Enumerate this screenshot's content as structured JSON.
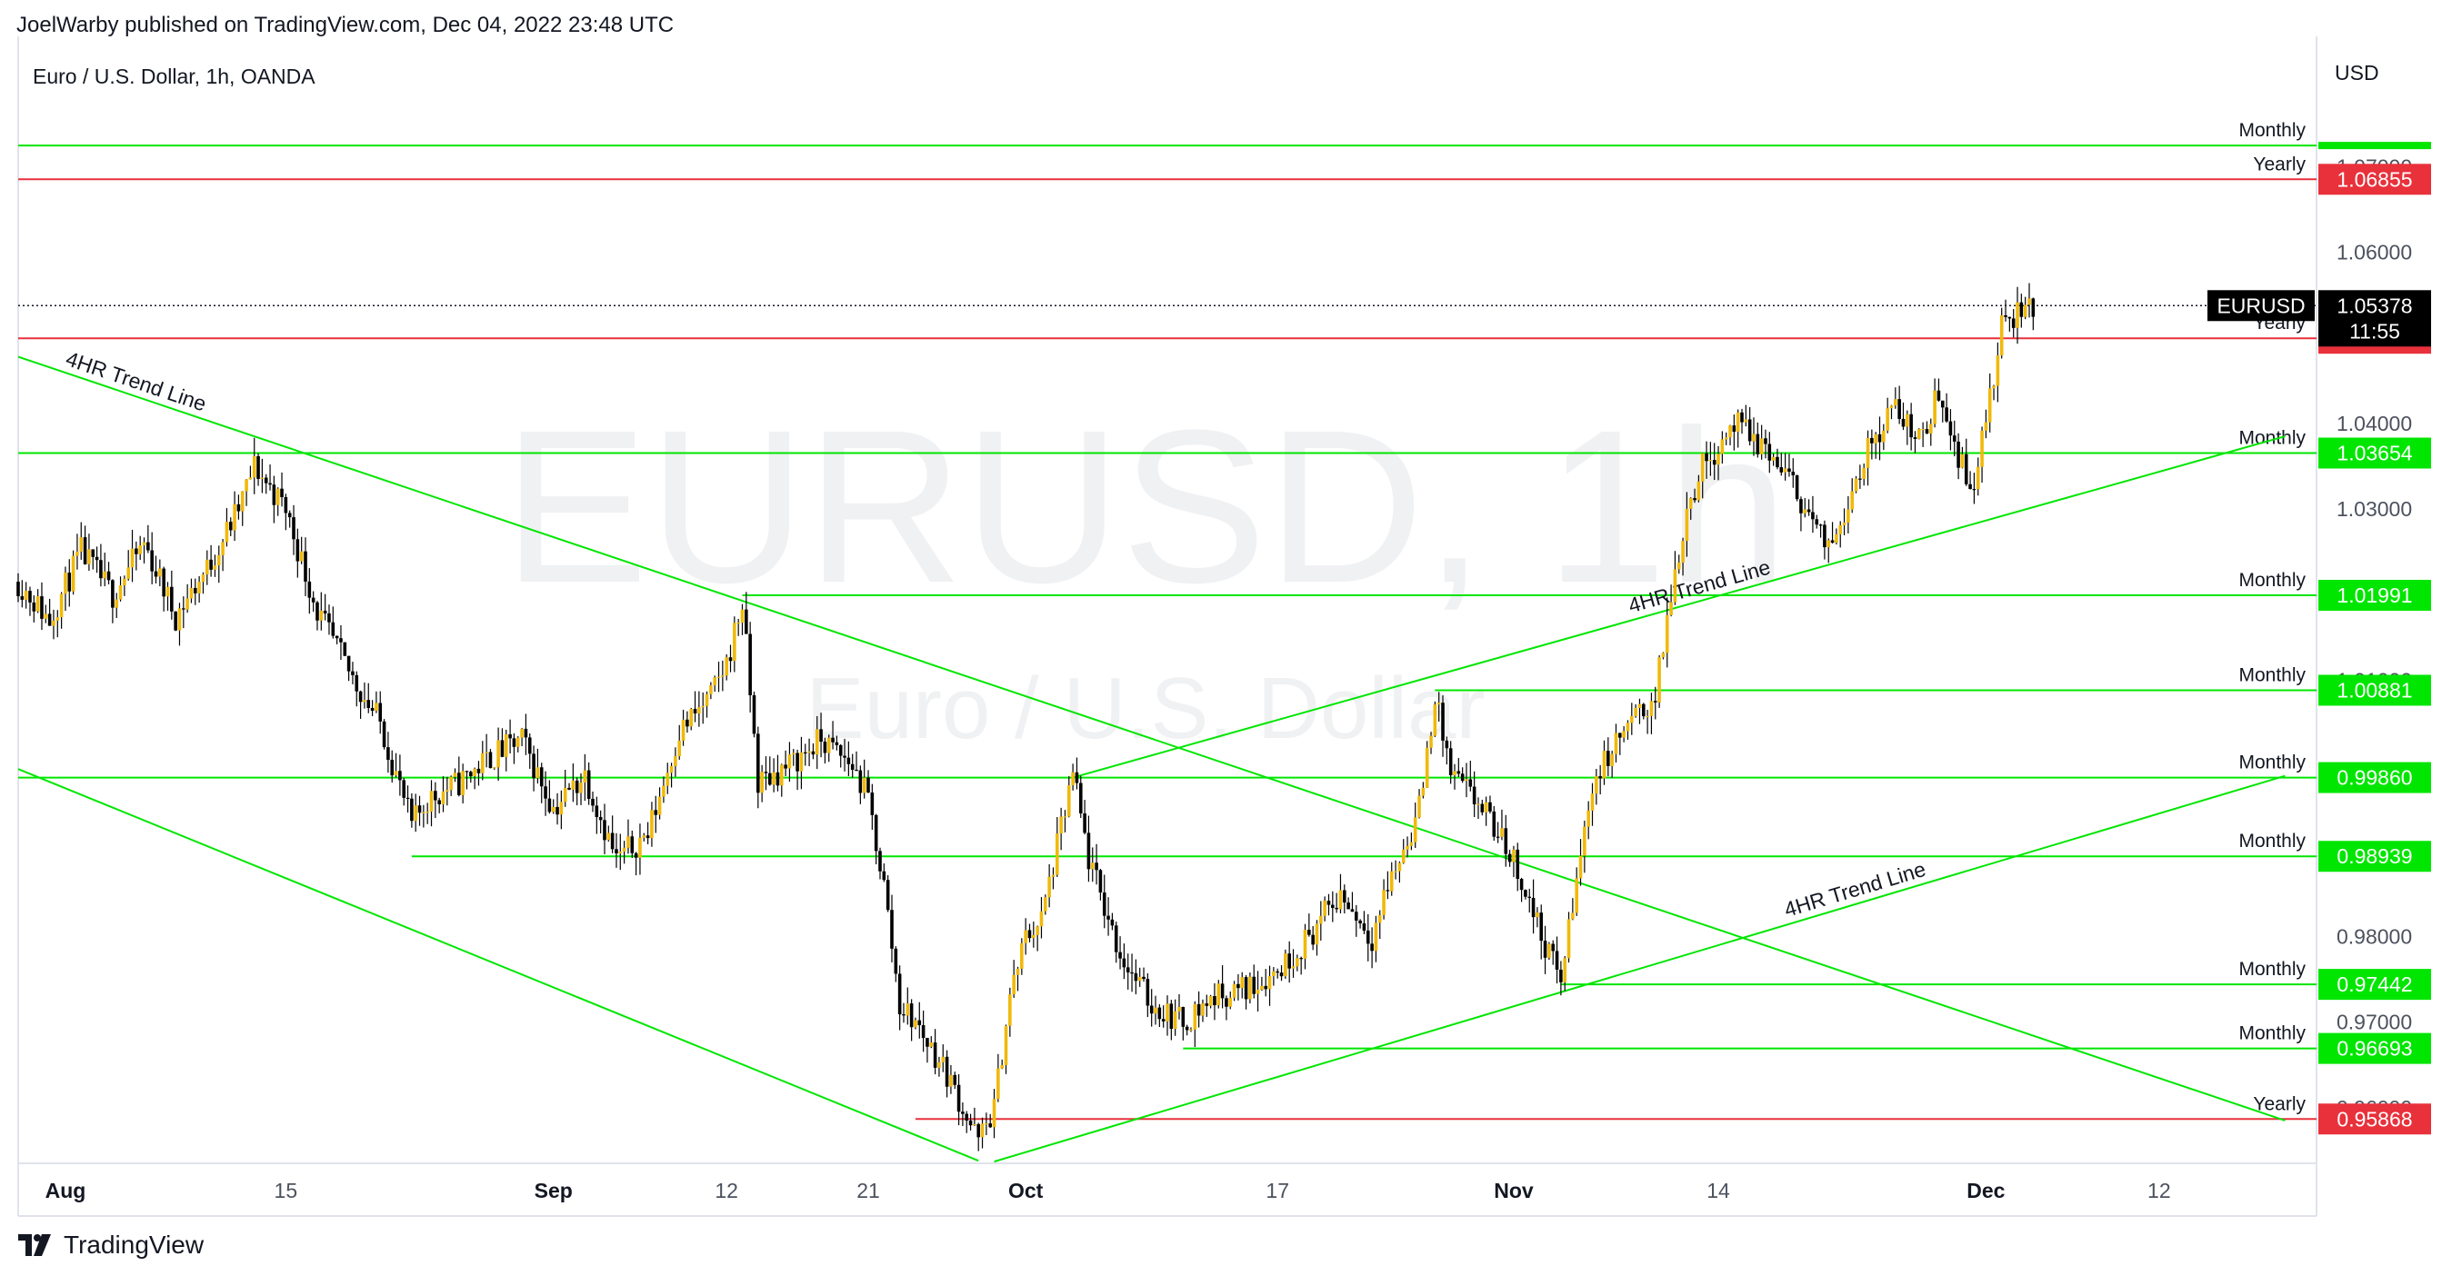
{
  "header": "JoelWarby published on TradingView.com, Dec 04, 2022 23:48 UTC",
  "footer": {
    "brand": "TradingView"
  },
  "colors": {
    "green": "#00e600",
    "red": "#e8313b",
    "price_badge": "#000000",
    "candle_up": "#f0b90b",
    "candle_down": "#000000",
    "axis_text": "#4c525e"
  },
  "chart_data": {
    "type": "candlestick",
    "symbol_title": "Euro / U.S. Dollar, 1h, OANDA",
    "watermark": {
      "main": "EURUSD, 1h",
      "sub": "Euro / U.S. Dollar"
    },
    "currency": "USD",
    "ylim": [
      0.9535,
      1.0825
    ],
    "y_ticks": [
      0.97,
      0.98,
      1.03,
      1.04,
      1.06
    ],
    "y_ticks_partial": [
      0.96,
      0.99,
      1.01,
      1.07
    ],
    "x_range": [
      "2022-07-29",
      "2022-12-22"
    ],
    "x_ticks": [
      {
        "label": "Aug",
        "date": "2022-08-01",
        "bold": true
      },
      {
        "label": "15",
        "date": "2022-08-15",
        "bold": false
      },
      {
        "label": "Sep",
        "date": "2022-09-01",
        "bold": true
      },
      {
        "label": "12",
        "date": "2022-09-12",
        "bold": false
      },
      {
        "label": "21",
        "date": "2022-09-21",
        "bold": false
      },
      {
        "label": "Oct",
        "date": "2022-10-01",
        "bold": true
      },
      {
        "label": "17",
        "date": "2022-10-17",
        "bold": false
      },
      {
        "label": "Nov",
        "date": "2022-11-01",
        "bold": true
      },
      {
        "label": "14",
        "date": "2022-11-14",
        "bold": false
      },
      {
        "label": "Dec",
        "date": "2022-12-01",
        "bold": true
      },
      {
        "label": "12",
        "date": "2022-12-12",
        "bold": false
      }
    ],
    "last_price": {
      "symbol": "EURUSD",
      "value": "1.05378",
      "countdown": "11:55",
      "y": 1.05378
    },
    "levels": [
      {
        "label": "Monthly",
        "value": null,
        "y": 1.0725,
        "color": "green",
        "start": "2022-07-29"
      },
      {
        "label": "Yearly",
        "value": "1.06855",
        "y": 1.06855,
        "color": "red",
        "start": "2022-07-29"
      },
      {
        "label": "Yearly",
        "value": "1.04996",
        "y": 1.04996,
        "color": "red",
        "start": "2022-07-29"
      },
      {
        "label": "Monthly",
        "value": "1.03654",
        "y": 1.03654,
        "color": "green",
        "start": "2022-07-29"
      },
      {
        "label": "Monthly",
        "value": "1.01991",
        "y": 1.01991,
        "color": "green",
        "start": "2022-09-13"
      },
      {
        "label": "Monthly",
        "value": "1.00881",
        "y": 1.00881,
        "color": "green",
        "start": "2022-10-27"
      },
      {
        "label": "Monthly",
        "value": "0.99860",
        "y": 0.9986,
        "color": "green",
        "start": "2022-07-29"
      },
      {
        "label": "Monthly",
        "value": "0.98939",
        "y": 0.98939,
        "color": "green",
        "start": "2022-08-23"
      },
      {
        "label": "Monthly",
        "value": "0.97442",
        "y": 0.97442,
        "color": "green",
        "start": "2022-11-04"
      },
      {
        "label": "Monthly",
        "value": "0.96693",
        "y": 0.96693,
        "color": "green",
        "start": "2022-10-11"
      },
      {
        "label": "Yearly",
        "value": "0.95868",
        "y": 0.95868,
        "color": "red",
        "start": "2022-09-24"
      }
    ],
    "trendlines": [
      {
        "label": "4HR Trend Line",
        "from": [
          "2022-07-29",
          1.0478
        ],
        "to": [
          "2022-12-20",
          0.9585
        ],
        "label_at": 0.05
      },
      {
        "label": "",
        "from": [
          "2022-07-29",
          0.9996
        ],
        "to": [
          "2022-09-28",
          0.9538
        ],
        "label_at": null
      },
      {
        "label": "4HR Trend Line",
        "from": [
          "2022-10-04",
          0.9986
        ],
        "to": [
          "2022-12-20",
          1.0385
        ],
        "label_at": 0.52
      },
      {
        "label": "4HR Trend Line",
        "from": [
          "2022-09-29",
          0.9537
        ],
        "to": [
          "2022-12-20",
          0.9988
        ],
        "label_at": 0.67
      }
    ],
    "price_path": [
      [
        "2022-07-29",
        1.0215
      ],
      [
        "2022-07-31",
        1.017
      ],
      [
        "2022-08-02",
        1.025
      ],
      [
        "2022-08-04",
        1.02
      ],
      [
        "2022-08-06",
        1.026
      ],
      [
        "2022-08-08",
        1.0175
      ],
      [
        "2022-08-10",
        1.023
      ],
      [
        "2022-08-12",
        1.03
      ],
      [
        "2022-08-13",
        1.035
      ],
      [
        "2022-08-15",
        1.03
      ],
      [
        "2022-08-17",
        1.018
      ],
      [
        "2022-08-19",
        1.011
      ],
      [
        "2022-08-21",
        1.005
      ],
      [
        "2022-08-23",
        0.993
      ],
      [
        "2022-08-24",
        0.996
      ],
      [
        "2022-08-26",
        0.998
      ],
      [
        "2022-08-28",
        1.001
      ],
      [
        "2022-08-30",
        1.003
      ],
      [
        "2022-09-01",
        0.995
      ],
      [
        "2022-09-03",
        0.999
      ],
      [
        "2022-09-05",
        0.989
      ],
      [
        "2022-09-07",
        0.992
      ],
      [
        "2022-09-09",
        1.004
      ],
      [
        "2022-09-11",
        1.008
      ],
      [
        "2022-09-12",
        1.012
      ],
      [
        "2022-09-13",
        1.019
      ],
      [
        "2022-09-14",
        0.998
      ],
      [
        "2022-09-16",
        1.0
      ],
      [
        "2022-09-18",
        1.003
      ],
      [
        "2022-09-20",
        1.0
      ],
      [
        "2022-09-21",
        0.996
      ],
      [
        "2022-09-22",
        0.986
      ],
      [
        "2022-09-23",
        0.972
      ],
      [
        "2022-09-24",
        0.97
      ],
      [
        "2022-09-26",
        0.964
      ],
      [
        "2022-09-28",
        0.956
      ],
      [
        "2022-09-29",
        0.96
      ],
      [
        "2022-09-30",
        0.973
      ],
      [
        "2022-10-01",
        0.98
      ],
      [
        "2022-10-02",
        0.982
      ],
      [
        "2022-10-04",
        0.999
      ],
      [
        "2022-10-05",
        0.989
      ],
      [
        "2022-10-07",
        0.978
      ],
      [
        "2022-10-09",
        0.972
      ],
      [
        "2022-10-11",
        0.97
      ],
      [
        "2022-10-13",
        0.973
      ],
      [
        "2022-10-15",
        0.974
      ],
      [
        "2022-10-17",
        0.976
      ],
      [
        "2022-10-19",
        0.98
      ],
      [
        "2022-10-21",
        0.985
      ],
      [
        "2022-10-23",
        0.98
      ],
      [
        "2022-10-24",
        0.986
      ],
      [
        "2022-10-25",
        0.99
      ],
      [
        "2022-10-26",
        0.995
      ],
      [
        "2022-10-27",
        1.008
      ],
      [
        "2022-10-28",
        0.999
      ],
      [
        "2022-10-30",
        0.995
      ],
      [
        "2022-11-01",
        0.989
      ],
      [
        "2022-11-03",
        0.979
      ],
      [
        "2022-11-04",
        0.975
      ],
      [
        "2022-11-06",
        0.998
      ],
      [
        "2022-11-08",
        1.004
      ],
      [
        "2022-11-10",
        1.008
      ],
      [
        "2022-11-11",
        1.02
      ],
      [
        "2022-11-12",
        1.03
      ],
      [
        "2022-11-13",
        1.035
      ],
      [
        "2022-11-15",
        1.04
      ],
      [
        "2022-11-17",
        1.037
      ],
      [
        "2022-11-19",
        1.032
      ],
      [
        "2022-11-21",
        1.025
      ],
      [
        "2022-11-23",
        1.035
      ],
      [
        "2022-11-25",
        1.042
      ],
      [
        "2022-11-27",
        1.038
      ],
      [
        "2022-11-28",
        1.044
      ],
      [
        "2022-11-30",
        1.032
      ],
      [
        "2022-12-01",
        1.04
      ],
      [
        "2022-12-02",
        1.051
      ],
      [
        "2022-12-03",
        1.053
      ],
      [
        "2022-12-04",
        1.0538
      ]
    ]
  }
}
